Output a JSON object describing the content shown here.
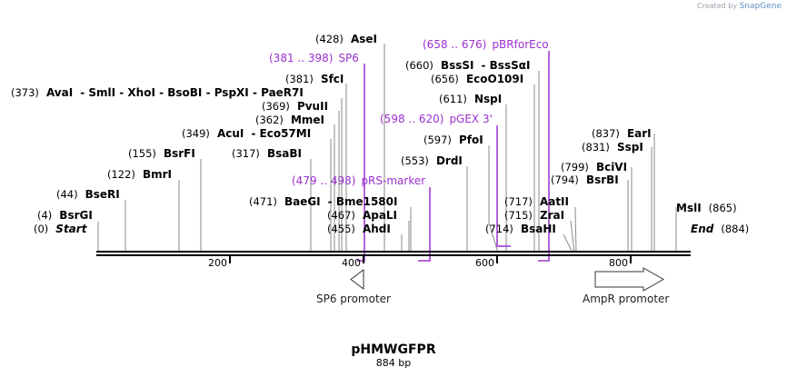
{
  "credit": {
    "prefix": "Created by",
    "brand": "SnapGene"
  },
  "plasmid": {
    "name": "pHMWGFPR",
    "length": "884 bp"
  },
  "ticks": [
    "200",
    "400",
    "600",
    "800"
  ],
  "sites": [
    {
      "pos": "(0)",
      "name": "Start"
    },
    {
      "pos": "(4)",
      "name": "BsrGI"
    },
    {
      "pos": "(44)",
      "name": "BseRI"
    },
    {
      "pos": "(122)",
      "name": "BmrI"
    },
    {
      "pos": "(155)",
      "name": "BsrFI"
    },
    {
      "pos": "(317)",
      "name": "BsaBI"
    },
    {
      "pos": "(349)",
      "name": "AcuI"
    },
    {
      "pos": "- Eco57MI",
      "name": ""
    },
    {
      "pos": "(362)",
      "name": "MmeI"
    },
    {
      "pos": "(369)",
      "name": "PvuII"
    },
    {
      "pos": "(373)",
      "name": "AvaI"
    },
    {
      "pos": "(381)",
      "name": "SfcI"
    },
    {
      "pos": "(428)",
      "name": "AseI"
    },
    {
      "pos": "(455)",
      "name": "AhdI"
    },
    {
      "pos": "(467)",
      "name": "ApaLI"
    },
    {
      "pos": "(471)",
      "name": "BaeGI"
    },
    {
      "pos": "(553)",
      "name": "DrdI"
    },
    {
      "pos": "(597)",
      "name": "PfoI"
    },
    {
      "pos": "(611)",
      "name": "NspI"
    },
    {
      "pos": "(656)",
      "name": "EcoO109I"
    },
    {
      "pos": "(660)",
      "name": "BssSI"
    },
    {
      "pos": "(714)",
      "name": "BsaHI"
    },
    {
      "pos": "(715)",
      "name": "ZraI"
    },
    {
      "pos": "(717)",
      "name": "AatII"
    },
    {
      "pos": "(794)",
      "name": "BsrBI"
    },
    {
      "pos": "(799)",
      "name": "BciVI"
    },
    {
      "pos": "(831)",
      "name": "SspI"
    },
    {
      "pos": "(837)",
      "name": "EarI"
    },
    {
      "pos": "(865)",
      "name": "MslI"
    },
    {
      "pos": "(884)",
      "name": "End"
    }
  ],
  "site_extras": {
    "avai_chain": "- SmlI  - XhoI  - BsoBI  - PspXI  - PaeR7I",
    "eco57mi": "Eco57MI",
    "bme1580i": "Bme1580I",
    "bsssqi": "BssSαI"
  },
  "primers": [
    {
      "range": "(381 .. 398)",
      "name": "SP6"
    },
    {
      "range": "(479 .. 498)",
      "name": "pRS-marker"
    },
    {
      "range": "(598 .. 620)",
      "name": "pGEX 3'"
    },
    {
      "range": "(658 .. 676)",
      "name": "pBRforEco"
    }
  ],
  "features": [
    {
      "name": "SP6 promoter"
    },
    {
      "name": "AmpR promoter"
    }
  ],
  "colors": {
    "primer": "#9b30d0",
    "leader": "#888888",
    "backbone": "#000000"
  }
}
